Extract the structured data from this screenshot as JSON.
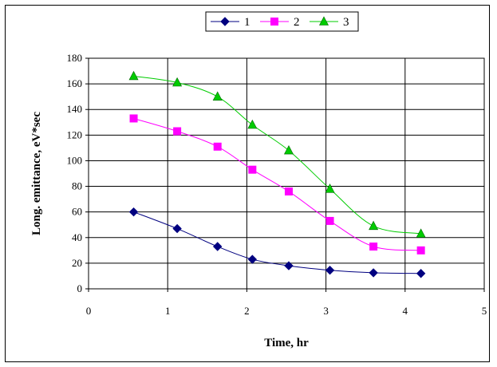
{
  "chart_data": {
    "type": "line",
    "title": "",
    "xlabel": "Time, hr",
    "ylabel": "Long. emittance, eV*sec",
    "xlim": [
      0,
      5
    ],
    "ylim": [
      0,
      180
    ],
    "x_ticks": [
      0,
      1,
      2,
      3,
      4,
      5
    ],
    "y_ticks": [
      0,
      20,
      40,
      60,
      80,
      100,
      120,
      140,
      160,
      180
    ],
    "grid": true,
    "legend_position": "top",
    "series": [
      {
        "name": "1",
        "color": "#000080",
        "marker": "diamond",
        "x": [
          0.57,
          1.12,
          1.63,
          2.07,
          2.53,
          3.05,
          3.6,
          4.2
        ],
        "y": [
          60,
          47,
          33,
          23,
          18,
          14.5,
          12.5,
          12
        ]
      },
      {
        "name": "2",
        "color": "#ff00ff",
        "marker": "square",
        "x": [
          0.57,
          1.12,
          1.63,
          2.07,
          2.53,
          3.05,
          3.6,
          4.2
        ],
        "y": [
          133,
          123,
          111,
          93,
          76,
          53,
          33,
          30
        ]
      },
      {
        "name": "3",
        "color": "#00cc00",
        "marker": "triangle",
        "x": [
          0.57,
          1.12,
          1.63,
          2.07,
          2.53,
          3.05,
          3.6,
          4.2
        ],
        "y": [
          166,
          161,
          150,
          128,
          108,
          78,
          49,
          43
        ]
      }
    ]
  }
}
